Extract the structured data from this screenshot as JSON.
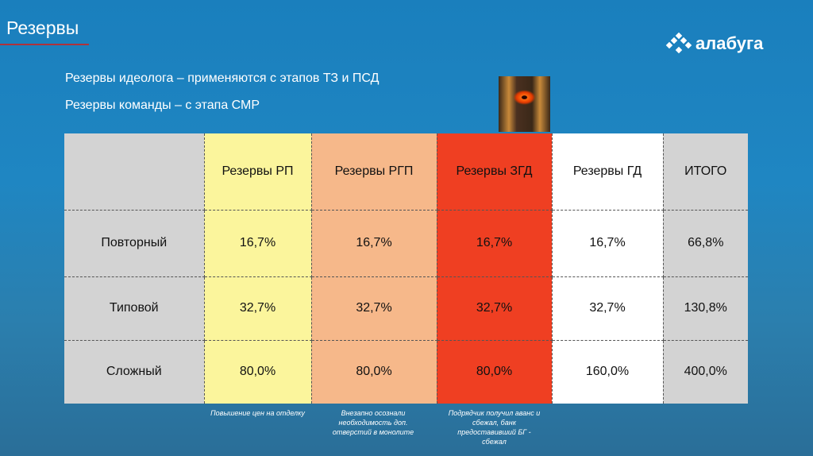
{
  "header": {
    "title": "Резервы",
    "logo_text": "алабуга"
  },
  "subtitles": [
    "Резервы идеолога – применяются с этапов ТЗ и ПСД",
    "Резервы команды – с этапа СМР"
  ],
  "table": {
    "columns": [
      "",
      "Резервы РП",
      "Резервы РГП",
      "Резервы ЗГД",
      "Резервы ГД",
      "ИТОГО"
    ],
    "rows": [
      [
        "Повторный",
        "16,7%",
        "16,7%",
        "16,7%",
        "16,7%",
        "66,8%"
      ],
      [
        "Типовой",
        "32,7%",
        "32,7%",
        "32,7%",
        "32,7%",
        "130,8%"
      ],
      [
        "Сложный",
        "80,0%",
        "80,0%",
        "80,0%",
        "160,0%",
        "400,0%"
      ]
    ]
  },
  "notes": [
    "Повышение цен на отделку",
    "Внезапно осознали необходимость доп. отверстий в монолите",
    "Подрядчик получил аванс и сбежал, банк предоставивший БГ - сбежал"
  ],
  "colors": {
    "rp": "#fbf59c",
    "rgp": "#f6b88a",
    "zgd": "#ef3f22",
    "gd": "#ffffff",
    "label": "#d3d3d3",
    "accent": "#b0323a"
  }
}
